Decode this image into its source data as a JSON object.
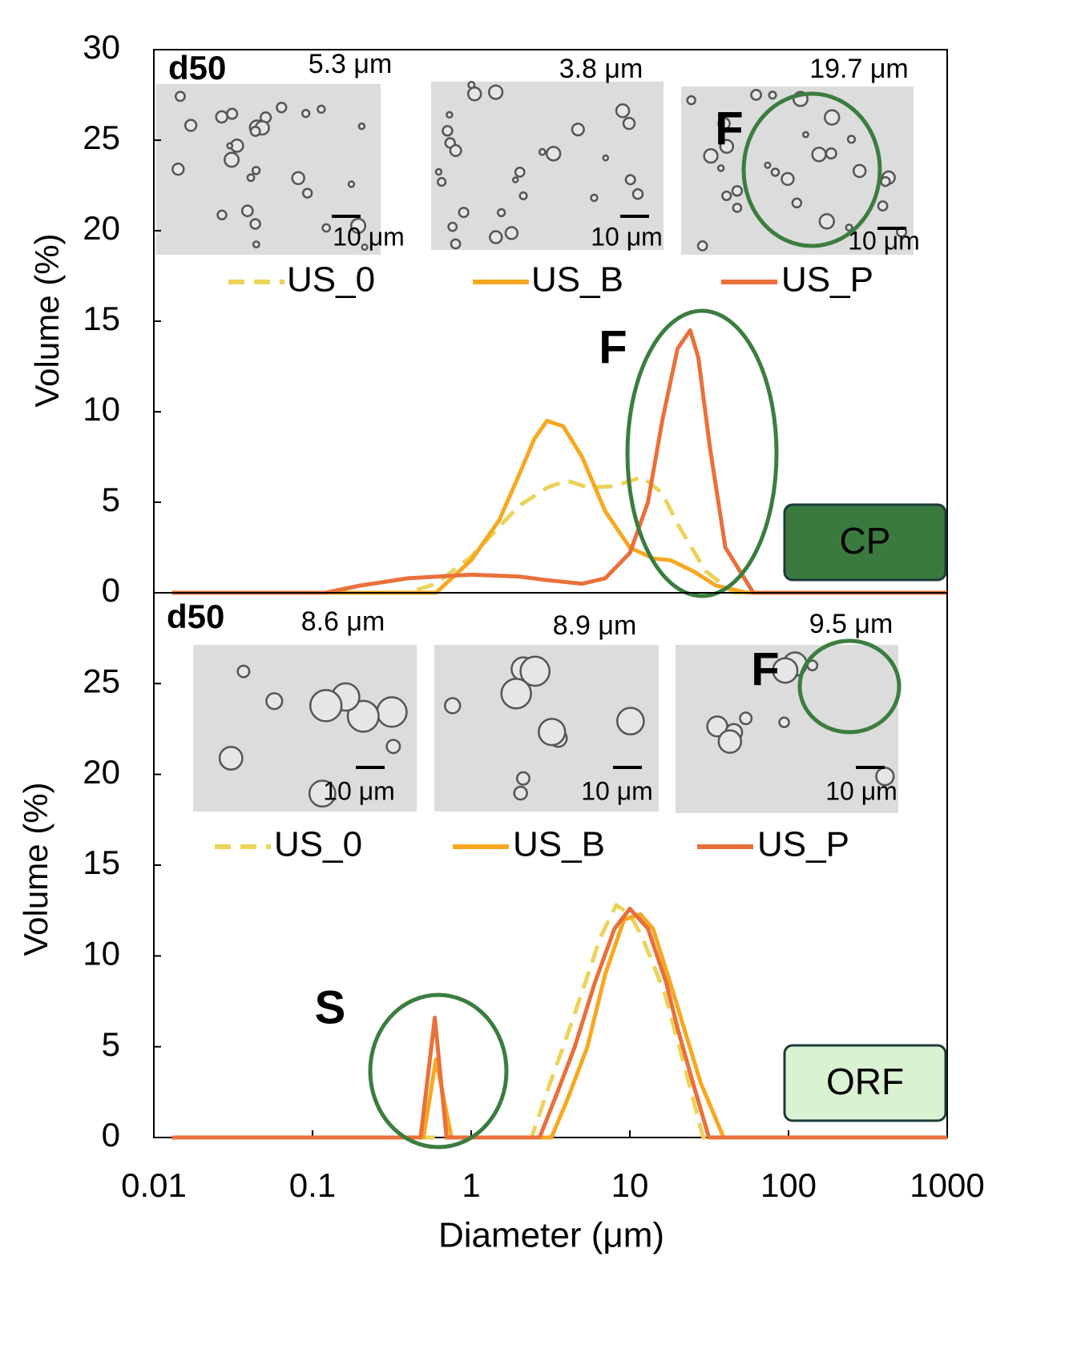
{
  "chart_data": [
    {
      "type": "line",
      "xscale": "log",
      "xlim": [
        0.01,
        1000
      ],
      "ylim": [
        0,
        30
      ],
      "yticks": [
        0,
        5,
        10,
        15,
        20,
        25,
        30
      ],
      "ylabel": "Volume (%)",
      "d50_label": "d50",
      "d50_values": [
        "5.3 μm",
        "3.8 μm",
        "19.7 μm"
      ],
      "scale_bar_label": "10 μm",
      "image_label": "F",
      "curve_label": "F",
      "panel_label": "CP",
      "panel_label_color": "#3a7a3f",
      "panel_label_text_color": "#ffffff",
      "series": [
        {
          "name": "US_0",
          "color": "#ecd35a",
          "line_style": "dashed",
          "x": [
            0.013,
            0.4,
            0.6,
            1,
            2,
            3,
            4,
            5.5,
            8,
            12,
            16,
            20,
            30,
            45,
            1000
          ],
          "values": [
            0,
            0,
            0.5,
            2,
            4.8,
            5.8,
            6.2,
            5.8,
            5.9,
            6.4,
            5.5,
            3.8,
            1.2,
            0,
            0
          ]
        },
        {
          "name": "US_B",
          "color": "#f6a821",
          "line_style": "solid",
          "x": [
            0.013,
            0.6,
            1,
            1.5,
            2,
            2.5,
            3,
            3.8,
            5,
            7,
            10,
            14,
            18,
            25,
            35,
            55,
            1000
          ],
          "values": [
            0,
            0,
            1.8,
            4,
            6.5,
            8.5,
            9.5,
            9.2,
            7.5,
            4.5,
            2.5,
            1.9,
            1.8,
            1.2,
            0.4,
            0,
            0
          ]
        },
        {
          "name": "US_P",
          "color": "#e9703a",
          "line_style": "solid",
          "x": [
            0.013,
            0.12,
            0.2,
            0.4,
            1,
            2,
            3,
            5,
            7,
            10,
            13,
            16,
            20,
            24,
            27,
            32,
            40,
            60,
            1000
          ],
          "values": [
            0,
            0,
            0.4,
            0.8,
            1,
            0.9,
            0.7,
            0.5,
            0.8,
            2.2,
            5,
            9.5,
            13.5,
            14.5,
            13,
            8,
            2.5,
            0,
            0
          ]
        }
      ]
    },
    {
      "type": "line",
      "xscale": "log",
      "xlim": [
        0.01,
        1000
      ],
      "xticks": [
        0.01,
        0.1,
        1,
        10,
        100,
        1000
      ],
      "ylim": [
        0,
        30
      ],
      "yticks": [
        0,
        5,
        10,
        15,
        20,
        25
      ],
      "xlabel": "Diameter (μm)",
      "ylabel": "Volume (%)",
      "d50_label": "d50",
      "d50_values": [
        "8.6 μm",
        "8.9 μm",
        "9.5 μm"
      ],
      "scale_bar_label": "10 μm",
      "image_label": "F",
      "curve_label": "S",
      "panel_label": "ORF",
      "panel_label_color": "#d8f2d2",
      "panel_label_text_color": "#000000",
      "series": [
        {
          "name": "US_0",
          "color": "#ecd35a",
          "line_style": "dashed",
          "x": [
            0.013,
            2.4,
            3,
            3.8,
            5,
            6.5,
            8.2,
            10,
            12,
            16.5,
            22,
            29,
            1000
          ],
          "values": [
            0,
            0,
            2.5,
            5,
            8,
            11,
            12.8,
            12.3,
            11,
            8,
            4,
            0,
            0
          ]
        },
        {
          "name": "US_B",
          "color": "#f6a821",
          "line_style": "solid",
          "x": [
            0.013,
            0.5,
            0.6,
            0.75,
            3.2,
            4,
            5.4,
            7,
            9.2,
            11.6,
            14,
            18,
            22,
            28,
            39,
            1000
          ],
          "values": [
            0,
            0,
            4.3,
            0,
            0,
            2,
            5,
            9,
            12,
            12.3,
            11.5,
            8.5,
            6,
            3,
            0,
            0
          ]
        },
        {
          "name": "US_P",
          "color": "#e9703a",
          "line_style": "solid",
          "x": [
            0.013,
            0.48,
            0.59,
            0.7,
            2.7,
            3.5,
            4.5,
            6,
            8,
            10,
            13,
            17,
            20,
            25,
            31.5,
            1000
          ],
          "values": [
            0,
            0,
            6.6,
            0,
            0,
            2.5,
            5,
            8.5,
            11.5,
            12.6,
            11.5,
            8.5,
            6,
            3,
            0,
            0
          ]
        }
      ]
    }
  ]
}
